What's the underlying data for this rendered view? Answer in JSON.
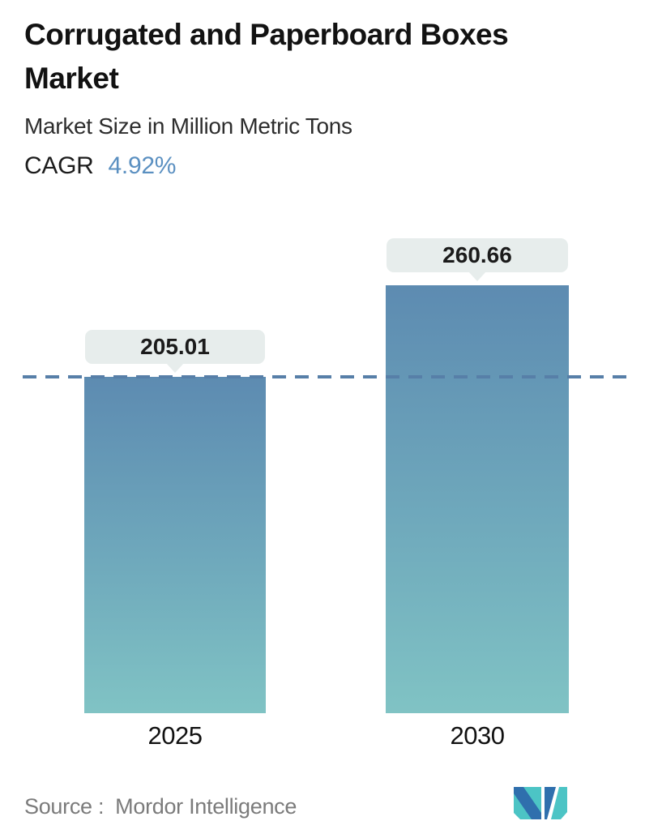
{
  "header": {
    "title": "Corrugated and Paperboard Boxes Market",
    "subtitle": "Market Size in Million Metric Tons",
    "cagr_label": "CAGR",
    "cagr_value": "4.92%"
  },
  "chart_data": {
    "type": "bar",
    "title": "Corrugated and Paperboard Boxes Market",
    "subtitle": "Market Size in Million Metric Tons",
    "ylabel": "Market Size (Million Metric Tons)",
    "xlabel": "",
    "categories": [
      "2025",
      "2030"
    ],
    "values": [
      205.01,
      260.66
    ],
    "ylim": [
      0,
      280
    ],
    "grid": false,
    "legend": "none",
    "annotations": [
      "horizontal dashed reference line at y = 205.01 (2025 level)",
      "value callouts above each bar"
    ],
    "cagr": "4.92%",
    "colors": {
      "bar_gradient_top": "#5d8bb1",
      "bar_gradient_bottom": "#80c3c4",
      "callout_bg": "#e7edec",
      "dash_line": "#577fa8",
      "cagr_accent": "#5b90c1"
    }
  },
  "footer": {
    "source_label": "Source :",
    "source_name": "Mordor Intelligence",
    "logo_name": "mordor-intelligence-logo",
    "logo_colors": {
      "teal": "#4cc4c5",
      "blue": "#2f6fad"
    }
  }
}
